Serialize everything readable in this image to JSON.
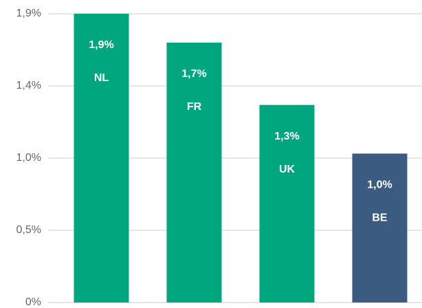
{
  "chart_data": {
    "type": "bar",
    "categories": [
      "NL",
      "FR",
      "UK",
      "BE"
    ],
    "values": [
      1.9,
      1.71,
      1.3,
      0.98
    ],
    "value_labels": [
      "1,9%",
      "1,7%",
      "1,3%",
      "1,0%"
    ],
    "colors": [
      "#00a67e",
      "#00a67e",
      "#00a67e",
      "#3b5b80"
    ],
    "ylim": [
      0,
      1.9
    ],
    "yticks": [
      {
        "value": 0,
        "label": "0%"
      },
      {
        "value": 0.475,
        "label": "0,5%"
      },
      {
        "value": 0.95,
        "label": "1,0%"
      },
      {
        "value": 1.425,
        "label": "1,4%"
      },
      {
        "value": 1.9,
        "label": "1,9%"
      }
    ],
    "grid": true
  }
}
